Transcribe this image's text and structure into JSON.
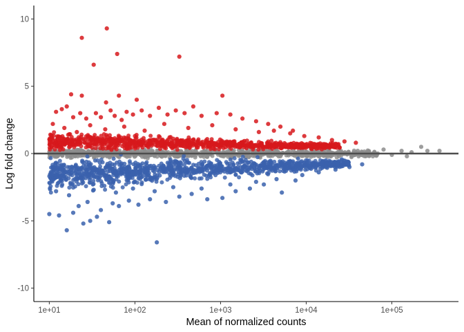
{
  "chart_data": {
    "type": "scatter",
    "title": "",
    "xlabel": "Mean of normalized counts",
    "ylabel": "Log fold change",
    "x_scale": "log10",
    "xlim": [
      6.6,
      600000
    ],
    "ylim": [
      -11,
      11
    ],
    "x_ticks": [
      10,
      100,
      1000,
      10000,
      100000
    ],
    "x_tick_labels": [
      "1e+01",
      "1e+02",
      "1e+03",
      "1e+04",
      "1e+05"
    ],
    "y_ticks": [
      -10,
      -5,
      0,
      5,
      10
    ],
    "y_tick_labels": [
      "-10",
      "-5",
      "0",
      "5",
      "10"
    ],
    "reference_line_y": 0,
    "grid": false,
    "legend": "none",
    "colors": {
      "up": "#d7191c",
      "down": "#3a62ad",
      "not_significant": "#8c8c8c",
      "reference_line": "#4d4d4d"
    },
    "series": [
      {
        "values": [
          {
            "x": 24,
            "y": 8.6
          },
          {
            "x": 47,
            "y": 9.3
          },
          {
            "x": 62,
            "y": 7.4
          },
          {
            "x": 33,
            "y": 6.6
          },
          {
            "x": 330,
            "y": 7.2
          },
          {
            "x": 18,
            "y": 4.4
          },
          {
            "x": 24,
            "y": 4.3
          },
          {
            "x": 65,
            "y": 4.3
          },
          {
            "x": 1050,
            "y": 4.3
          },
          {
            "x": 105,
            "y": 4.0
          },
          {
            "x": 12,
            "y": 3.1
          },
          {
            "x": 14,
            "y": 3.3
          },
          {
            "x": 16,
            "y": 3.5
          },
          {
            "x": 19,
            "y": 2.7
          },
          {
            "x": 23,
            "y": 3.0
          },
          {
            "x": 27,
            "y": 2.6
          },
          {
            "x": 35,
            "y": 3.0
          },
          {
            "x": 40,
            "y": 2.7
          },
          {
            "x": 46,
            "y": 3.8
          },
          {
            "x": 52,
            "y": 3.2
          },
          {
            "x": 58,
            "y": 2.8
          },
          {
            "x": 70,
            "y": 2.5
          },
          {
            "x": 80,
            "y": 3.1
          },
          {
            "x": 95,
            "y": 2.9
          },
          {
            "x": 120,
            "y": 3.2
          },
          {
            "x": 150,
            "y": 2.8
          },
          {
            "x": 190,
            "y": 3.4
          },
          {
            "x": 240,
            "y": 2.9
          },
          {
            "x": 300,
            "y": 3.2
          },
          {
            "x": 380,
            "y": 3.0
          },
          {
            "x": 480,
            "y": 3.5
          },
          {
            "x": 600,
            "y": 2.8
          },
          {
            "x": 900,
            "y": 3.0
          },
          {
            "x": 1300,
            "y": 2.9
          },
          {
            "x": 1800,
            "y": 2.6
          },
          {
            "x": 2600,
            "y": 2.4
          },
          {
            "x": 3600,
            "y": 2.2
          },
          {
            "x": 5000,
            "y": 2.0
          },
          {
            "x": 7000,
            "y": 1.7
          },
          {
            "x": 11,
            "y": 2.2
          },
          {
            "x": 15,
            "y": 1.9
          },
          {
            "x": 21,
            "y": 1.6
          },
          {
            "x": 30,
            "y": 2.1
          },
          {
            "x": 45,
            "y": 1.8
          },
          {
            "x": 75,
            "y": 2.0
          },
          {
            "x": 130,
            "y": 1.7
          },
          {
            "x": 220,
            "y": 2.2
          },
          {
            "x": 420,
            "y": 1.9
          },
          {
            "x": 800,
            "y": 2.1
          },
          {
            "x": 1500,
            "y": 1.8
          },
          {
            "x": 2800,
            "y": 1.6
          },
          {
            "x": 4200,
            "y": 1.7
          },
          {
            "x": 6500,
            "y": 1.5
          },
          {
            "x": 9500,
            "y": 1.3
          },
          {
            "x": 14000,
            "y": 1.2
          },
          {
            "x": 20000,
            "y": 1.0
          },
          {
            "x": 28000,
            "y": 0.9
          },
          {
            "x": 38000,
            "y": 0.8
          }
        ]
      },
      {
        "values": [
          {
            "x": 180,
            "y": -6.6
          },
          {
            "x": 16,
            "y": -5.7
          },
          {
            "x": 10,
            "y": -4.5
          },
          {
            "x": 13,
            "y": -4.6
          },
          {
            "x": 19,
            "y": -4.4
          },
          {
            "x": 25,
            "y": -5.2
          },
          {
            "x": 30,
            "y": -5.0
          },
          {
            "x": 36,
            "y": -4.7
          },
          {
            "x": 50,
            "y": -5.1
          },
          {
            "x": 22,
            "y": -3.9
          },
          {
            "x": 28,
            "y": -3.6
          },
          {
            "x": 40,
            "y": -4.2
          },
          {
            "x": 55,
            "y": -3.7
          },
          {
            "x": 65,
            "y": -3.9
          },
          {
            "x": 85,
            "y": -3.5
          },
          {
            "x": 110,
            "y": -3.8
          },
          {
            "x": 150,
            "y": -3.4
          },
          {
            "x": 230,
            "y": -3.6
          },
          {
            "x": 330,
            "y": -3.2
          },
          {
            "x": 460,
            "y": -3.0
          },
          {
            "x": 700,
            "y": -3.4
          },
          {
            "x": 1050,
            "y": -3.3
          },
          {
            "x": 1500,
            "y": -2.8
          },
          {
            "x": 2200,
            "y": -2.6
          },
          {
            "x": 3200,
            "y": -2.3
          },
          {
            "x": 5200,
            "y": -2.9
          },
          {
            "x": 7500,
            "y": -2.0
          },
          {
            "x": 12,
            "y": -2.8
          },
          {
            "x": 17,
            "y": -3.1
          },
          {
            "x": 33,
            "y": -2.7
          },
          {
            "x": 60,
            "y": -2.9
          },
          {
            "x": 95,
            "y": -2.6
          },
          {
            "x": 170,
            "y": -2.8
          },
          {
            "x": 280,
            "y": -2.5
          },
          {
            "x": 600,
            "y": -2.6
          },
          {
            "x": 1300,
            "y": -2.3
          },
          {
            "x": 2600,
            "y": -2.1
          },
          {
            "x": 4500,
            "y": -1.9
          },
          {
            "x": 9000,
            "y": -1.6
          },
          {
            "x": 14000,
            "y": -1.4
          },
          {
            "x": 22000,
            "y": -1.2
          },
          {
            "x": 32000,
            "y": -1.0
          },
          {
            "x": 45000,
            "y": -0.8
          }
        ]
      },
      {
        "values": [
          {
            "x": 11,
            "y": 0.1
          },
          {
            "x": 20,
            "y": -0.2
          },
          {
            "x": 40,
            "y": 0.3
          },
          {
            "x": 80,
            "y": -0.1
          },
          {
            "x": 160,
            "y": 0.2
          },
          {
            "x": 320,
            "y": -0.2
          },
          {
            "x": 640,
            "y": 0.1
          },
          {
            "x": 1300,
            "y": -0.1
          },
          {
            "x": 2600,
            "y": 0.2
          },
          {
            "x": 5000,
            "y": -0.2
          },
          {
            "x": 10000,
            "y": 0.1
          },
          {
            "x": 20000,
            "y": -0.1
          },
          {
            "x": 40000,
            "y": 0.2
          },
          {
            "x": 60000,
            "y": -0.2
          },
          {
            "x": 80000,
            "y": 0.3
          },
          {
            "x": 100000,
            "y": -0.1
          },
          {
            "x": 130000,
            "y": 0.2
          },
          {
            "x": 150000,
            "y": -0.2
          },
          {
            "x": 170000,
            "y": 0.1
          },
          {
            "x": 220000,
            "y": 0.5
          },
          {
            "x": 260000,
            "y": 0.2
          },
          {
            "x": 360000,
            "y": 0.2
          }
        ]
      }
    ]
  }
}
